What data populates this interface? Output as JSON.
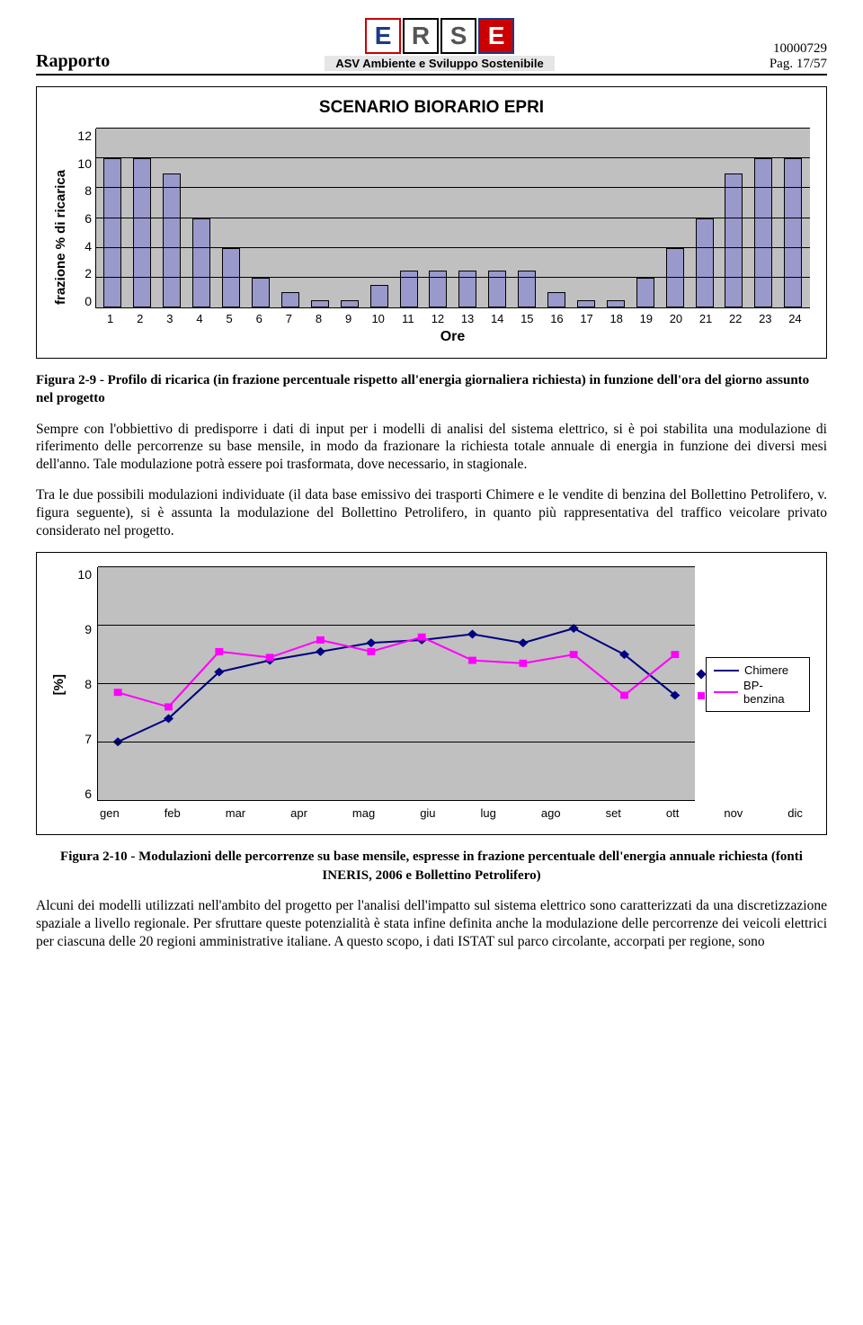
{
  "header": {
    "left": "Rapporto",
    "logo_letters": [
      "E",
      "R",
      "S",
      "E"
    ],
    "subtitle": "ASV Ambiente e Sviluppo Sostenibile",
    "right_top": "10000729",
    "right_bottom": "Pag. 17/57"
  },
  "bar_chart": {
    "type": "bar",
    "title": "SCENARIO BIORARIO EPRI",
    "y_label": "frazione % di ricarica",
    "x_label": "Ore",
    "ylim": [
      0,
      12
    ],
    "ytick_step": 2,
    "yticks": [
      "12",
      "10",
      "8",
      "6",
      "4",
      "2",
      "0"
    ],
    "categories": [
      "1",
      "2",
      "3",
      "4",
      "5",
      "6",
      "7",
      "8",
      "9",
      "10",
      "11",
      "12",
      "13",
      "14",
      "15",
      "16",
      "17",
      "18",
      "19",
      "20",
      "21",
      "22",
      "23",
      "24"
    ],
    "values": [
      10,
      10,
      9,
      6,
      4,
      2,
      1,
      0.5,
      0.5,
      1.5,
      2.5,
      2.5,
      2.5,
      2.5,
      2.5,
      1,
      0.5,
      0.5,
      2,
      4,
      6,
      9,
      10,
      10
    ],
    "bar_color": "#9999cc",
    "background_color": "#c0c0c0",
    "border_color": "#000000"
  },
  "fig1_caption": "Figura 2-9 - Profilo di ricarica (in frazione percentuale rispetto all'energia giornaliera richiesta) in funzione dell'ora del giorno assunto nel progetto",
  "para1": "Sempre con l'obbiettivo di predisporre i dati di input per i modelli di analisi del sistema elettrico, si è poi stabilita una modulazione di riferimento delle percorrenze su base mensile, in modo da frazionare la richiesta totale annuale di energia in funzione dei diversi mesi dell'anno. Tale modulazione potrà essere poi trasformata, dove necessario, in stagionale.",
  "para2": "Tra le due possibili modulazioni individuate (il data base emissivo dei trasporti Chimere e le vendite di benzina del Bollettino Petrolifero, v. figura seguente), si è assunta la modulazione del Bollettino Petrolifero, in quanto più rappresentativa del traffico veicolare privato considerato nel progetto.",
  "line_chart": {
    "type": "line",
    "y_label": "[%]",
    "ylim": [
      6,
      10
    ],
    "yticks": [
      "10",
      "9",
      "8",
      "7",
      "6"
    ],
    "x_categories": [
      "gen",
      "feb",
      "mar",
      "apr",
      "mag",
      "giu",
      "lug",
      "ago",
      "set",
      "ott",
      "nov",
      "dic"
    ],
    "series": [
      {
        "name": "Chimere",
        "color": "#000080",
        "marker": "diamond",
        "values": [
          7.0,
          7.4,
          8.2,
          8.4,
          8.55,
          8.7,
          8.75,
          8.85,
          8.7,
          8.95,
          8.5,
          7.8
        ]
      },
      {
        "name": "BP-benzina",
        "color": "#ff00ff",
        "marker": "square",
        "values": [
          7.85,
          7.6,
          8.55,
          8.45,
          8.75,
          8.55,
          8.8,
          8.4,
          8.35,
          8.5,
          7.8,
          8.5
        ]
      }
    ],
    "background_color": "#c0c0c0"
  },
  "fig2_caption": "Figura 2-10 - Modulazioni delle percorrenze su base mensile, espresse in frazione percentuale dell'energia annuale richiesta (fonti INERIS, 2006 e Bollettino Petrolifero)",
  "para3": "Alcuni dei modelli utilizzati nell'ambito del progetto per l'analisi dell'impatto sul sistema elettrico sono caratterizzati da una discretizzazione spaziale a livello regionale. Per sfruttare queste potenzialità è stata infine definita anche la modulazione delle percorrenze dei veicoli elettrici per ciascuna delle 20 regioni amministrative italiane. A questo scopo, i dati ISTAT sul parco circolante, accorpati per regione, sono"
}
